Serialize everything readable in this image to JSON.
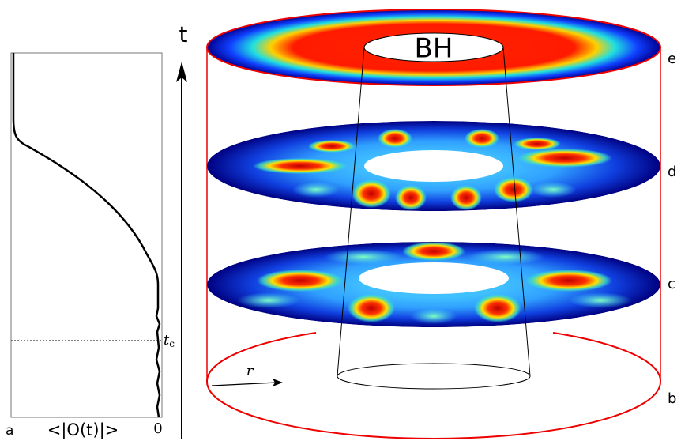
{
  "time_axis_label": "t",
  "black_hole_label": "BH",
  "panel_labels": {
    "a": "a",
    "b": "b",
    "c": "c",
    "d": "d",
    "e": "e"
  },
  "order_parameter_label": "<|O(t)|>",
  "zero_label": "0",
  "critical_time_label": "t",
  "critical_time_subscript": "c",
  "radius_label": "r"
}
